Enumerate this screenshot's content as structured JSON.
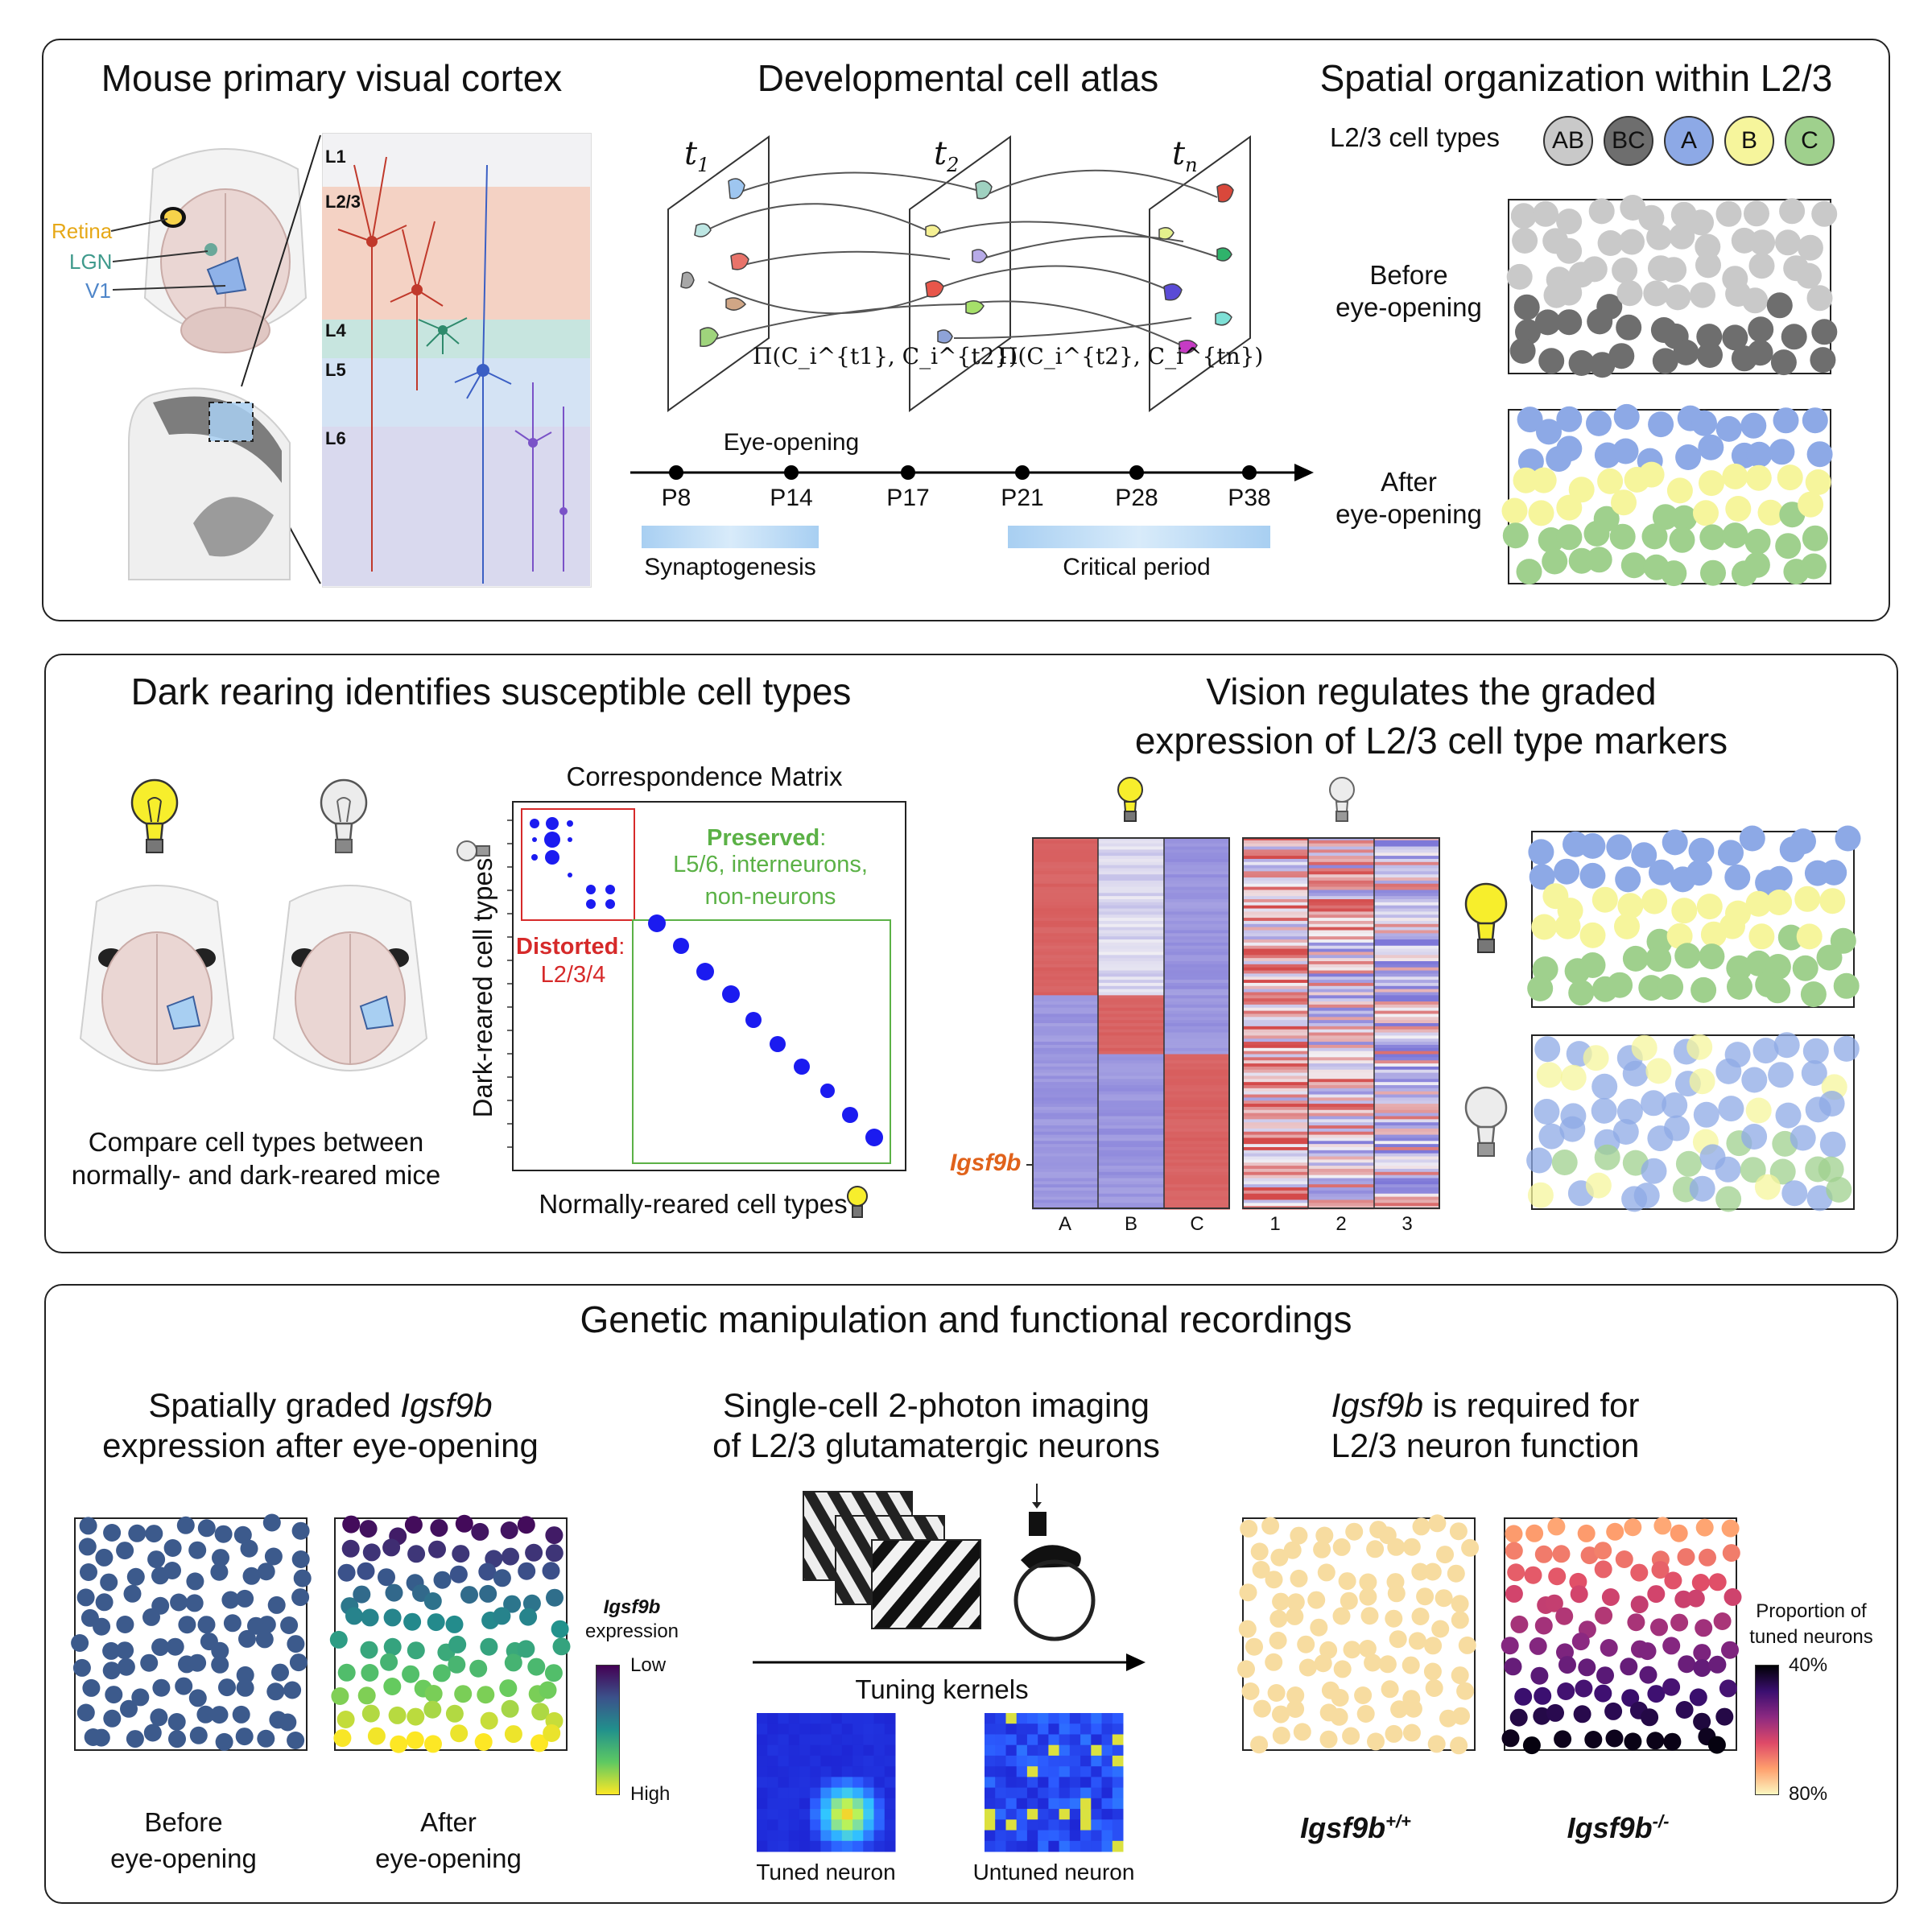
{
  "top": {
    "cortex_title": "Mouse primary visual cortex",
    "retina": "Retina",
    "lgn": "LGN",
    "v1": "V1",
    "layers": [
      "L1",
      "L2/3",
      "L4",
      "L5",
      "L6"
    ],
    "atlas_title": "Developmental cell atlas",
    "t_first": "t",
    "t_first_sub": "1",
    "t_second": "t",
    "t_second_sub": "2",
    "t_last": "t",
    "t_last_sub": "n",
    "pi_first": "Π(C_i^{t1}, C_i^{t2})",
    "pi_second": "Π(C_i^{t2}, C_i^{tn})",
    "eye_opening": "Eye-opening",
    "timepoints": [
      "P8",
      "P14",
      "P17",
      "P21",
      "P28",
      "P38"
    ],
    "synaptogenesis": "Synaptogenesis",
    "critical_period": "Critical period",
    "spatial_title": "Spatial organization within L2/3",
    "celltypes_label": "L2/3 cell types",
    "celltypes": [
      {
        "label": "AB",
        "color": "#c9c9c9"
      },
      {
        "label": "BC",
        "color": "#6e6e6e"
      },
      {
        "label": "A",
        "color": "#8da9e6"
      },
      {
        "label": "B",
        "color": "#f6f59c"
      },
      {
        "label": "C",
        "color": "#9fd08d"
      }
    ],
    "before_label_1": "Before",
    "before_label_2": "eye-opening",
    "after_label_1": "After",
    "after_label_2": "eye-opening"
  },
  "middle": {
    "dark_title": "Dark rearing identifies susceptible cell types",
    "compare_1": "Compare cell types between",
    "compare_2": "normally- and dark-reared mice",
    "matrix_title": "Correspondence Matrix",
    "y_label": "Dark-reared cell types",
    "x_label": "Normally-reared cell types",
    "preserved_head": "Preserved",
    "preserved_body_1": "L5/6, interneurons,",
    "preserved_body_2": "non-neurons",
    "distorted_head": "Distorted",
    "distorted_body": "L2/3/4",
    "vision_title_1": "Vision regulates the graded",
    "vision_title_2": "expression of L2/3 cell type markers",
    "gene_label": "Igsf9b",
    "heat_cols_light": [
      "A",
      "B",
      "C"
    ],
    "heat_cols_dark": [
      "1",
      "2",
      "3"
    ]
  },
  "bottom": {
    "genetic_title": "Genetic manipulation and functional recordings",
    "graded_title_1a": "Spatially graded ",
    "graded_title_1b": "Igsf9b",
    "graded_title_2": "expression after eye-opening",
    "before_1": "Before",
    "before_2": "eye-opening",
    "after_1": "After",
    "after_2": "eye-opening",
    "igsf_cbar_1": "Igsf9b",
    "igsf_cbar_2": "expression",
    "low": "Low",
    "high": "High",
    "imaging_title_1": "Single-cell 2-photon imaging",
    "imaging_title_2": "of L2/3 glutamatergic neurons",
    "tuning_kernels": "Tuning kernels",
    "tuned": "Tuned neuron",
    "untuned": "Untuned neuron",
    "required_title_1a": "Igsf9b",
    "required_title_1b": " is required for",
    "required_title_2": "L2/3 neuron function",
    "wt_base": "Igsf9b",
    "wt_sup": "+/+",
    "ko_base": "Igsf9b",
    "ko_sup": "-/-",
    "prop_1": "Proportion of",
    "prop_2": "tuned neurons",
    "p40": "40%",
    "p80": "80%"
  },
  "colors": {
    "ab": "#c9c9c9",
    "bc": "#6e6e6e",
    "a": "#8da9e6",
    "b": "#f6f59c",
    "c": "#9fd08d",
    "distorted": "#d62a2a",
    "preserved": "#5bb146",
    "matrix_dot": "#1b1bf0",
    "gene_orange": "#e0621b",
    "uniform_blue": "#3c5a8c"
  }
}
